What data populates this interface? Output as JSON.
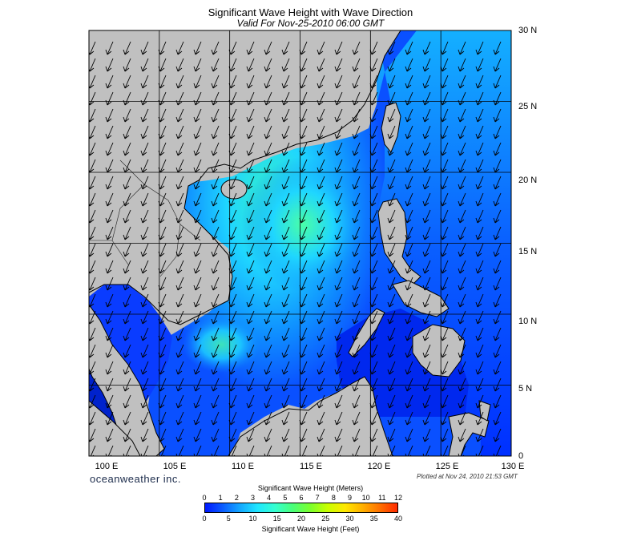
{
  "title": "Significant Wave Height with Wave Direction",
  "subtitle": "Valid For Nov-25-2010 06:00 GMT",
  "brand": "oceanweather inc.",
  "plotted": "Plotted at Nov 24, 2010 21:53 GMT",
  "lat_labels": [
    "30 N",
    "25 N",
    "20 N",
    "15 N",
    "10 N",
    "5 N",
    "0"
  ],
  "lon_labels": [
    "100 E",
    "105 E",
    "110 E",
    "115 E",
    "120 E",
    "125 E",
    "130 E"
  ],
  "colorbar": {
    "meters_title": "Significant Wave Height (Meters)",
    "feet_title": "Significant Wave Height (Feet)",
    "meters_ticks": [
      "0",
      "1",
      "2",
      "3",
      "4",
      "5",
      "6",
      "7",
      "8",
      "9",
      "10",
      "11",
      "12"
    ],
    "feet_ticks": [
      "0",
      "5",
      "10",
      "15",
      "20",
      "25",
      "30",
      "35",
      "40"
    ],
    "colors": [
      "#0018ff",
      "#0a5cff",
      "#14a8ff",
      "#1fe6ff",
      "#35ffd0",
      "#49ff7a",
      "#7aff2e",
      "#c8ff00",
      "#ffe800",
      "#ffb000",
      "#ff7000",
      "#ff2a00"
    ]
  },
  "wave_direction": "from NE (arrows pointing SW)",
  "colors": {
    "land": "#c0c0c0",
    "coast": "#000000",
    "grid": "#000000"
  }
}
